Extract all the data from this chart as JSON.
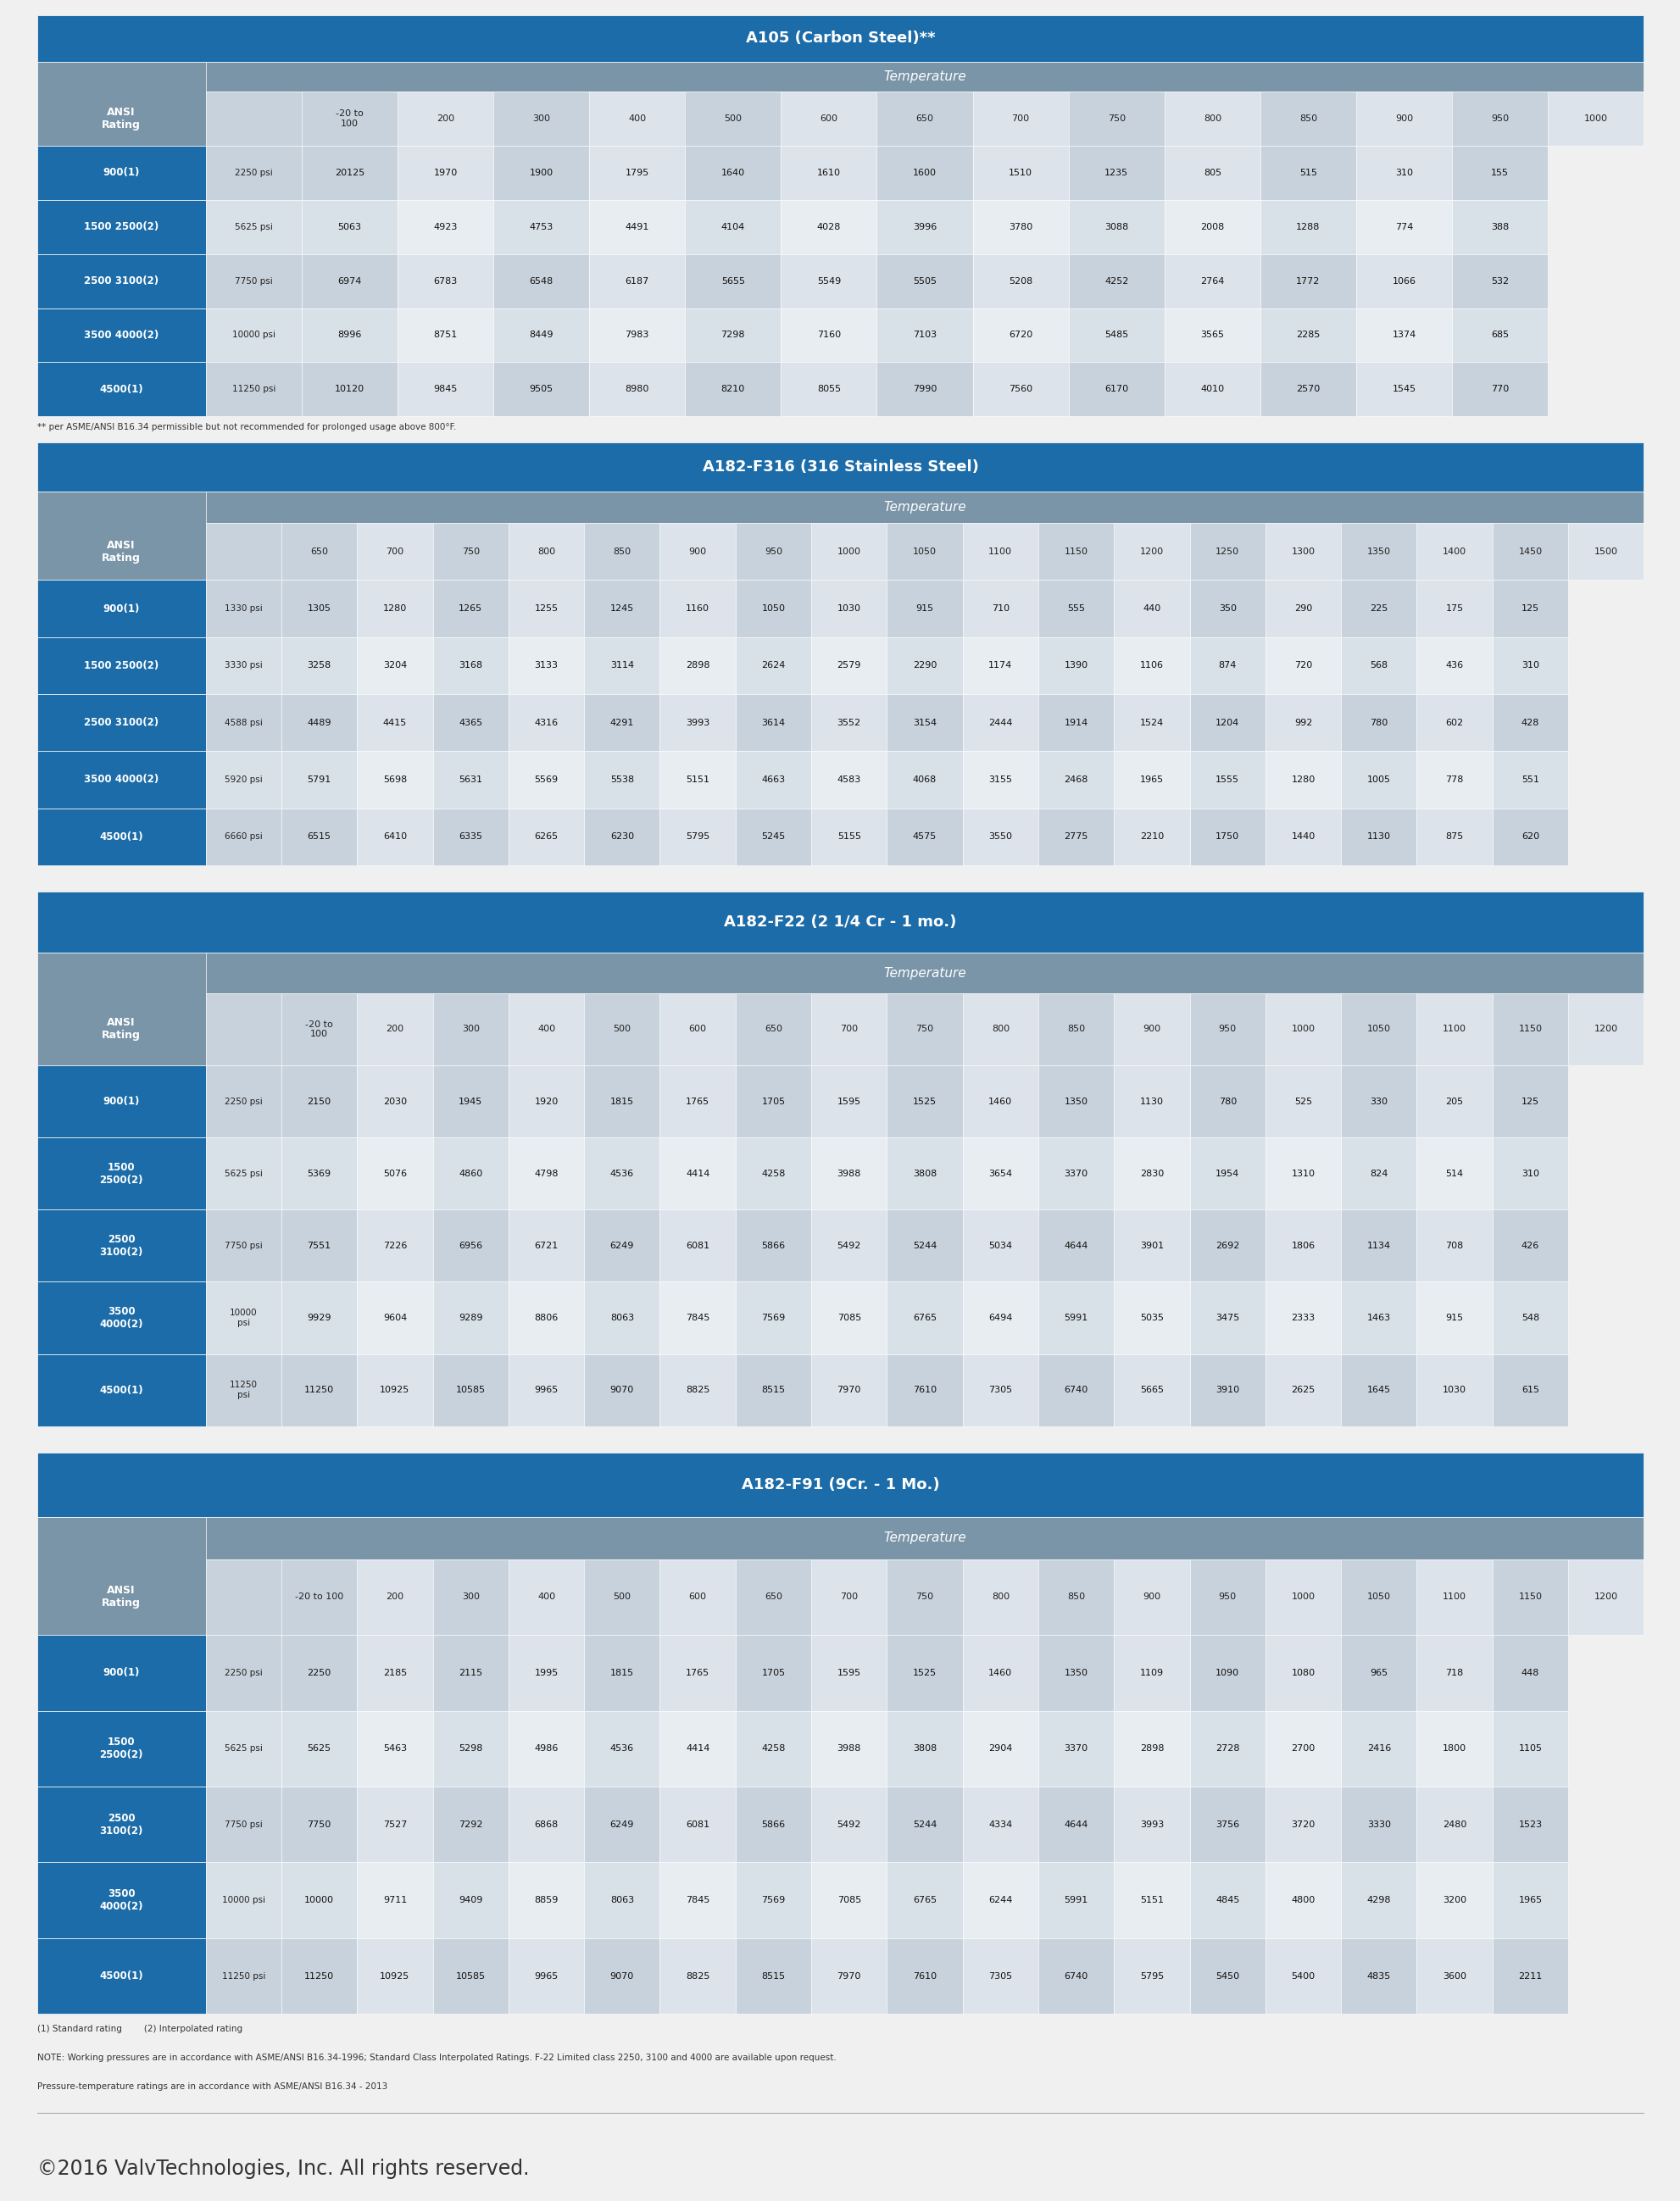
{
  "tables": [
    {
      "title": "A105 (Carbon Steel)**",
      "footnote": "** per ASME/ANSI B16.34 permissible but not recommended for prolonged usage above 800°F.",
      "temp_label": "Temperature",
      "col_headers": [
        "-20 to\n100",
        "200",
        "300",
        "400",
        "500",
        "600",
        "650",
        "700",
        "750",
        "800",
        "850",
        "900",
        "950",
        "1000"
      ],
      "rows": [
        {
          "label": "900(1)",
          "psi": "2250 psi",
          "values": [
            "20125",
            "1970",
            "1900",
            "1795",
            "1640",
            "1610",
            "1600",
            "1510",
            "1235",
            "805",
            "515",
            "310",
            "155"
          ]
        },
        {
          "label": "1500 2500(2)",
          "psi": "5625 psi",
          "values": [
            "5063",
            "4923",
            "4753",
            "4491",
            "4104",
            "4028",
            "3996",
            "3780",
            "3088",
            "2008",
            "1288",
            "774",
            "388"
          ]
        },
        {
          "label": "2500 3100(2)",
          "psi": "7750 psi",
          "values": [
            "6974",
            "6783",
            "6548",
            "6187",
            "5655",
            "5549",
            "5505",
            "5208",
            "4252",
            "2764",
            "1772",
            "1066",
            "532"
          ]
        },
        {
          "label": "3500 4000(2)",
          "psi": "10000 psi",
          "values": [
            "8996",
            "8751",
            "8449",
            "7983",
            "7298",
            "7160",
            "7103",
            "6720",
            "5485",
            "3565",
            "2285",
            "1374",
            "685"
          ]
        },
        {
          "label": "4500(1)",
          "psi": "11250 psi",
          "values": [
            "10120",
            "9845",
            "9505",
            "8980",
            "8210",
            "8055",
            "7990",
            "7560",
            "6170",
            "4010",
            "2570",
            "1545",
            "770"
          ]
        }
      ]
    },
    {
      "title": "A182-F316 (316 Stainless Steel)",
      "footnote": "",
      "temp_label": "Temperature",
      "col_headers": [
        "650",
        "700",
        "750",
        "800",
        "850",
        "900",
        "950",
        "1000",
        "1050",
        "1100",
        "1150",
        "1200",
        "1250",
        "1300",
        "1350",
        "1400",
        "1450",
        "1500"
      ],
      "rows": [
        {
          "label": "900(1)",
          "psi": "1330 psi",
          "values": [
            "1305",
            "1280",
            "1265",
            "1255",
            "1245",
            "1160",
            "1050",
            "1030",
            "915",
            "710",
            "555",
            "440",
            "350",
            "290",
            "225",
            "175",
            "125"
          ]
        },
        {
          "label": "1500 2500(2)",
          "psi": "3330 psi",
          "values": [
            "3258",
            "3204",
            "3168",
            "3133",
            "3114",
            "2898",
            "2624",
            "2579",
            "2290",
            "1174",
            "1390",
            "1106",
            "874",
            "720",
            "568",
            "436",
            "310"
          ]
        },
        {
          "label": "2500 3100(2)",
          "psi": "4588 psi",
          "values": [
            "4489",
            "4415",
            "4365",
            "4316",
            "4291",
            "3993",
            "3614",
            "3552",
            "3154",
            "2444",
            "1914",
            "1524",
            "1204",
            "992",
            "780",
            "602",
            "428"
          ]
        },
        {
          "label": "3500 4000(2)",
          "psi": "5920 psi",
          "values": [
            "5791",
            "5698",
            "5631",
            "5569",
            "5538",
            "5151",
            "4663",
            "4583",
            "4068",
            "3155",
            "2468",
            "1965",
            "1555",
            "1280",
            "1005",
            "778",
            "551"
          ]
        },
        {
          "label": "4500(1)",
          "psi": "6660 psi",
          "values": [
            "6515",
            "6410",
            "6335",
            "6265",
            "6230",
            "5795",
            "5245",
            "5155",
            "4575",
            "3550",
            "2775",
            "2210",
            "1750",
            "1440",
            "1130",
            "875",
            "620"
          ]
        }
      ]
    },
    {
      "title": "A182-F22 (2 1/4 Cr - 1 mo.)",
      "footnote": "",
      "temp_label": "Temperature",
      "col_headers": [
        "-20 to\n100",
        "200",
        "300",
        "400",
        "500",
        "600",
        "650",
        "700",
        "750",
        "800",
        "850",
        "900",
        "950",
        "1000",
        "1050",
        "1100",
        "1150",
        "1200"
      ],
      "rows": [
        {
          "label": "900(1)",
          "psi": "2250 psi",
          "values": [
            "2150",
            "2030",
            "1945",
            "1920",
            "1815",
            "1765",
            "1705",
            "1595",
            "1525",
            "1460",
            "1350",
            "1130",
            "780",
            "525",
            "330",
            "205",
            "125"
          ]
        },
        {
          "label": "1500\n2500(2)",
          "psi": "5625 psi",
          "values": [
            "5369",
            "5076",
            "4860",
            "4798",
            "4536",
            "4414",
            "4258",
            "3988",
            "3808",
            "3654",
            "3370",
            "2830",
            "1954",
            "1310",
            "824",
            "514",
            "310"
          ]
        },
        {
          "label": "2500\n3100(2)",
          "psi": "7750 psi",
          "values": [
            "7551",
            "7226",
            "6956",
            "6721",
            "6249",
            "6081",
            "5866",
            "5492",
            "5244",
            "5034",
            "4644",
            "3901",
            "2692",
            "1806",
            "1134",
            "708",
            "426"
          ]
        },
        {
          "label": "3500\n4000(2)",
          "psi": "10000\npsi",
          "values": [
            "9929",
            "9604",
            "9289",
            "8806",
            "8063",
            "7845",
            "7569",
            "7085",
            "6765",
            "6494",
            "5991",
            "5035",
            "3475",
            "2333",
            "1463",
            "915",
            "548"
          ]
        },
        {
          "label": "4500(1)",
          "psi": "11250\npsi",
          "values": [
            "11250",
            "10925",
            "10585",
            "9965",
            "9070",
            "8825",
            "8515",
            "7970",
            "7610",
            "7305",
            "6740",
            "5665",
            "3910",
            "2625",
            "1645",
            "1030",
            "615"
          ]
        }
      ]
    },
    {
      "title": "A182-F91 (9Cr. - 1 Mo.)",
      "footnote": "",
      "temp_label": "Temperature",
      "col_headers": [
        "-20 to 100",
        "200",
        "300",
        "400",
        "500",
        "600",
        "650",
        "700",
        "750",
        "800",
        "850",
        "900",
        "950",
        "1000",
        "1050",
        "1100",
        "1150",
        "1200"
      ],
      "rows": [
        {
          "label": "900(1)",
          "psi": "2250 psi",
          "values": [
            "2250",
            "2185",
            "2115",
            "1995",
            "1815",
            "1765",
            "1705",
            "1595",
            "1525",
            "1460",
            "1350",
            "1109",
            "1090",
            "1080",
            "965",
            "718",
            "448"
          ]
        },
        {
          "label": "1500\n2500(2)",
          "psi": "5625 psi",
          "values": [
            "5625",
            "5463",
            "5298",
            "4986",
            "4536",
            "4414",
            "4258",
            "3988",
            "3808",
            "2904",
            "3370",
            "2898",
            "2728",
            "2700",
            "2416",
            "1800",
            "1105"
          ]
        },
        {
          "label": "2500\n3100(2)",
          "psi": "7750 psi",
          "values": [
            "7750",
            "7527",
            "7292",
            "6868",
            "6249",
            "6081",
            "5866",
            "5492",
            "5244",
            "4334",
            "4644",
            "3993",
            "3756",
            "3720",
            "3330",
            "2480",
            "1523"
          ]
        },
        {
          "label": "3500\n4000(2)",
          "psi": "10000 psi",
          "values": [
            "10000",
            "9711",
            "9409",
            "8859",
            "8063",
            "7845",
            "7569",
            "7085",
            "6765",
            "6244",
            "5991",
            "5151",
            "4845",
            "4800",
            "4298",
            "3200",
            "1965"
          ]
        },
        {
          "label": "4500(1)",
          "psi": "11250 psi",
          "values": [
            "11250",
            "10925",
            "10585",
            "9965",
            "9070",
            "8825",
            "8515",
            "7970",
            "7610",
            "7305",
            "6740",
            "5795",
            "5450",
            "5400",
            "4835",
            "3600",
            "2211"
          ]
        }
      ]
    }
  ],
  "footer_lines": [
    "(1) Standard rating        (2) Interpolated rating",
    "NOTE: Working pressures are in accordance with ASME/ANSI B16.34-1996; Standard Class Interpolated Ratings. F-22 Limited class 2250, 3100 and 4000 are available upon request.",
    "Pressure-temperature ratings are in accordance with ASME/ANSI B16.34 - 2013"
  ],
  "copyright": "©2016 ValvTechnologies, Inc. All rights reserved.",
  "colors": {
    "title_bg": "#1b6ca8",
    "subheader_bg": "#7a94a8",
    "row_label_bg": "#1b6ca8",
    "col_dark": "#c8d2dc",
    "col_light": "#dce3ea",
    "row_odd_col_dark": "#c8d2dc",
    "row_odd_col_light": "#dce3ea",
    "row_even_col_dark": "#d8e0e8",
    "row_even_col_light": "#e8edf2",
    "psi_col_dark": "#c0cad4",
    "psi_col_light": "#d4dce4",
    "white": "#ffffff",
    "border": "#ffffff",
    "header_text": "#ffffff",
    "data_text": "#1a1a1a",
    "ansi_text": "#ffffff"
  }
}
